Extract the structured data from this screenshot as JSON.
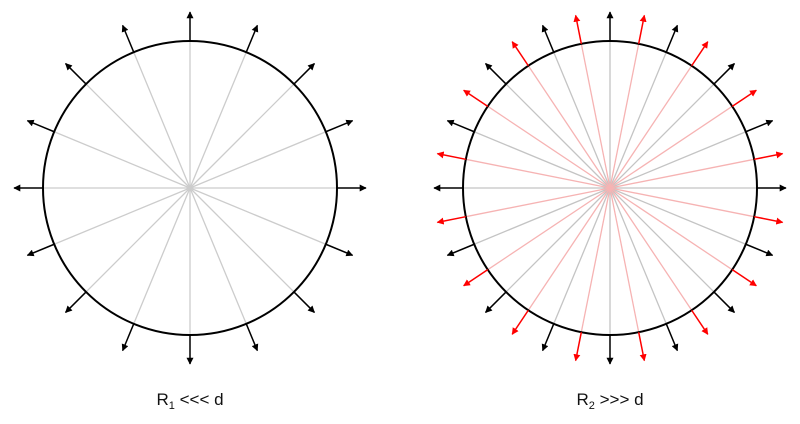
{
  "panels": [
    {
      "caption": {
        "symbol": "R",
        "subscript": "1",
        "relation": " <<< d"
      },
      "rays": [
        {
          "count": 16,
          "offset_deg": 0,
          "color": "#000000",
          "spoke_color": "#cccccc"
        }
      ]
    },
    {
      "caption": {
        "symbol": "R",
        "subscript": "2",
        "relation": " >>> d"
      },
      "rays": [
        {
          "count": 16,
          "offset_deg": 0,
          "color": "#000000",
          "spoke_color": "#c4c4c4"
        },
        {
          "count": 16,
          "offset_deg": 11.25,
          "color": "#ff0000",
          "spoke_color": "#f6b3b3"
        }
      ]
    }
  ],
  "colors": {
    "circle": "#000000",
    "background": "#ffffff"
  }
}
